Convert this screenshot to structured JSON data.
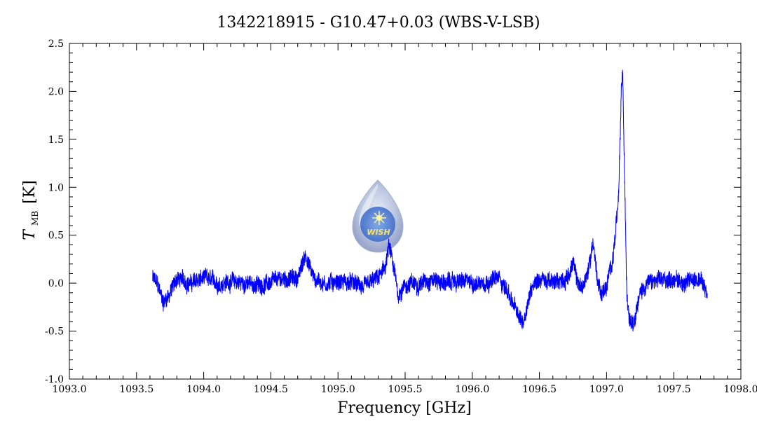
{
  "chart_data": {
    "type": "line",
    "title": "1342218915 - G10.47+0.03 (WBS-V-LSB)",
    "xlabel": "Frequency [GHz]",
    "ylabel_symbol": "T",
    "ylabel_subscript": "MB",
    "ylabel_unit": "[K]",
    "xlim": [
      1093.0,
      1098.0
    ],
    "ylim": [
      -1.0,
      2.5
    ],
    "x_ticks": [
      1093.0,
      1093.5,
      1094.0,
      1094.5,
      1095.0,
      1095.5,
      1096.0,
      1096.5,
      1097.0,
      1097.5,
      1098.0
    ],
    "x_tick_labels": [
      "1093.0",
      "1093.5",
      "1094.0",
      "1094.5",
      "1095.0",
      "1095.5",
      "1096.0",
      "1096.5",
      "1097.0",
      "1097.5",
      "1098.0"
    ],
    "y_ticks": [
      -1.0,
      -0.5,
      0.0,
      0.5,
      1.0,
      1.5,
      2.0,
      2.5
    ],
    "y_tick_labels": [
      "-1.0",
      "-0.5",
      "0.0",
      "0.5",
      "1.0",
      "1.5",
      "2.0",
      "2.5"
    ],
    "grid": false,
    "series": [
      {
        "color": "#0000ff",
        "x": [
          1093.62,
          1093.65,
          1093.7,
          1093.75,
          1093.8,
          1093.9,
          1094.0,
          1094.1,
          1094.2,
          1094.3,
          1094.4,
          1094.5,
          1094.6,
          1094.7,
          1094.76,
          1094.82,
          1094.9,
          1095.0,
          1095.1,
          1095.2,
          1095.3,
          1095.35,
          1095.38,
          1095.42,
          1095.45,
          1095.5,
          1095.6,
          1095.7,
          1095.8,
          1095.9,
          1096.0,
          1096.1,
          1096.2,
          1096.25,
          1096.3,
          1096.35,
          1096.38,
          1096.42,
          1096.46,
          1096.5,
          1096.6,
          1096.7,
          1096.75,
          1096.78,
          1096.82,
          1096.86,
          1096.9,
          1096.93,
          1096.96,
          1097.0,
          1097.05,
          1097.09,
          1097.11,
          1097.12,
          1097.13,
          1097.15,
          1097.17,
          1097.2,
          1097.25,
          1097.3,
          1097.4,
          1097.5,
          1097.6,
          1097.65,
          1097.7,
          1097.75
        ],
        "y": [
          0.05,
          0.0,
          -0.2,
          -0.1,
          0.05,
          0.0,
          0.05,
          0.0,
          0.02,
          0.0,
          -0.02,
          0.0,
          0.05,
          0.05,
          0.3,
          0.05,
          0.0,
          0.02,
          0.0,
          -0.05,
          0.05,
          0.15,
          0.38,
          0.1,
          -0.12,
          -0.02,
          0.0,
          0.05,
          0.0,
          0.02,
          0.0,
          0.02,
          0.05,
          -0.05,
          -0.2,
          -0.38,
          -0.4,
          -0.15,
          0.02,
          0.05,
          0.0,
          0.05,
          0.2,
          0.02,
          -0.05,
          0.1,
          0.45,
          0.05,
          -0.1,
          -0.05,
          0.3,
          0.9,
          2.0,
          2.2,
          1.4,
          -0.1,
          -0.35,
          -0.38,
          -0.1,
          0.0,
          0.02,
          0.05,
          0.0,
          0.05,
          0.05,
          -0.15
        ]
      }
    ],
    "logo_text": "WISH"
  }
}
